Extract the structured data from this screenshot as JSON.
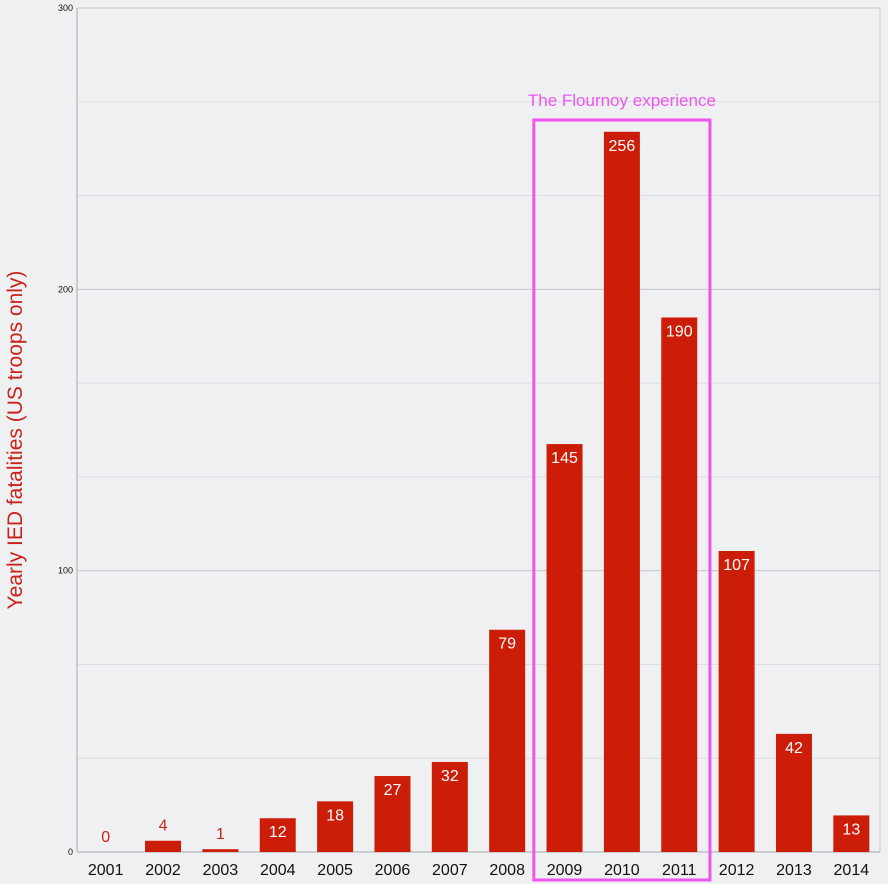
{
  "chart_data": {
    "type": "bar",
    "title": "",
    "xlabel": "",
    "ylabel": "Yearly IED fatalities (US troops only)",
    "categories": [
      "2001",
      "2002",
      "2003",
      "2004",
      "2005",
      "2006",
      "2007",
      "2008",
      "2009",
      "2010",
      "2011",
      "2012",
      "2013",
      "2014"
    ],
    "values": [
      0,
      4,
      1,
      12,
      18,
      27,
      32,
      79,
      145,
      256,
      190,
      107,
      42,
      13
    ],
    "ylim": [
      0,
      300
    ],
    "yticks": [
      0,
      100,
      200,
      300
    ],
    "minor_grid_step": 33.3333,
    "grid": true,
    "legend": "none",
    "annotation": {
      "text": "The Flournoy experience",
      "from_category": "2009",
      "to_category": "2011"
    },
    "colors": {
      "bar": "#cc1d08",
      "ylabel": "#c8231a",
      "annotation": "#ee55ee",
      "value_label_inside": "#ffffff",
      "value_label_outside": "#c8231a",
      "background": "#eff0f2",
      "grid_major": "#c9c9cc",
      "grid_minor": "#dcdde0"
    }
  }
}
